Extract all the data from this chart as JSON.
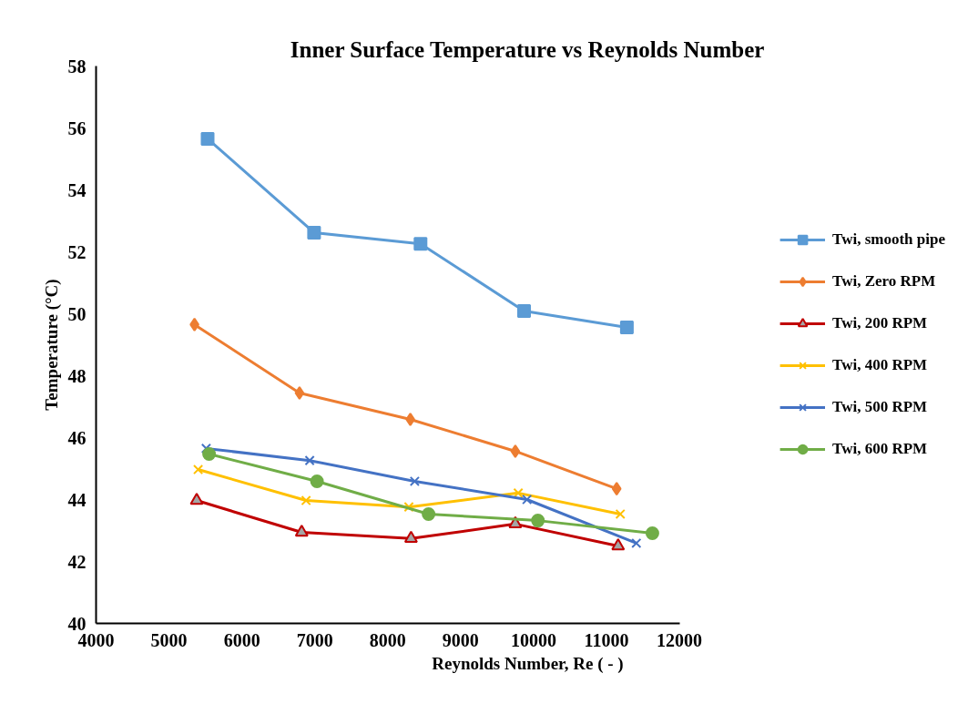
{
  "chart_data": {
    "type": "line",
    "title": "Inner Surface Temperature vs Reynolds Number",
    "xlabel": "Reynolds Number, Re ( - )",
    "ylabel": "Temperature (°C)",
    "xlim": [
      4000,
      12000
    ],
    "xticks": [
      4000,
      5000,
      6000,
      7000,
      8000,
      9000,
      10000,
      11000,
      12000
    ],
    "ylim": [
      40,
      58
    ],
    "yticks": [
      40,
      42,
      44,
      46,
      48,
      50,
      52,
      54,
      56,
      58
    ],
    "grid": false,
    "legend": "right",
    "series": [
      {
        "name": "Twi, smooth pipe",
        "color": "#5b9bd5",
        "marker": "square",
        "x": [
          5530,
          6990,
          8450,
          9870,
          11280
        ],
        "values": [
          55.65,
          52.62,
          52.26,
          50.09,
          49.56
        ]
      },
      {
        "name": "Twi, Zero RPM",
        "color": "#ed7d31",
        "marker": "diamond",
        "x": [
          5350,
          6790,
          8310,
          9750,
          11140
        ],
        "values": [
          49.65,
          47.44,
          46.59,
          45.56,
          44.35
        ]
      },
      {
        "name": "Twi, 200 RPM",
        "color": "#c00000",
        "marker": "triangle",
        "x": [
          5380,
          6820,
          8320,
          9750,
          11160
        ],
        "values": [
          43.97,
          42.94,
          42.74,
          43.21,
          42.5
        ]
      },
      {
        "name": "Twi, 400 RPM",
        "color": "#ffc000",
        "marker": "cross",
        "x": [
          5400,
          6880,
          8290,
          9790,
          11190
        ],
        "values": [
          44.97,
          43.97,
          43.76,
          44.21,
          43.53
        ]
      },
      {
        "name": "Twi, 500 RPM",
        "color": "#4472c4",
        "marker": "cross",
        "x": [
          5510,
          6930,
          8370,
          9910,
          11410
        ],
        "values": [
          45.65,
          45.26,
          44.59,
          44.0,
          42.59
        ]
      },
      {
        "name": "Twi, 600 RPM",
        "color": "#70ad47",
        "marker": "circle",
        "x": [
          5550,
          7030,
          8560,
          10060,
          11630
        ],
        "values": [
          45.47,
          44.59,
          43.53,
          43.32,
          42.91
        ]
      }
    ]
  }
}
